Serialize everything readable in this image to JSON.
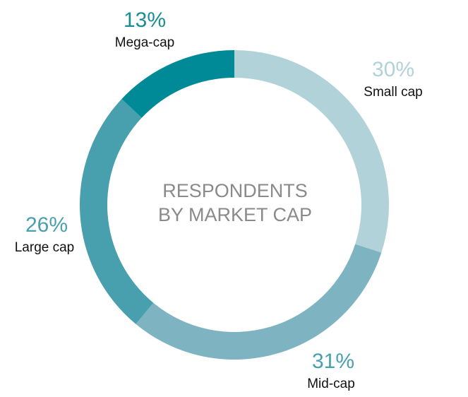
{
  "chart_data": {
    "type": "pie",
    "title_lines": [
      "RESPONDENTS",
      "BY MARKET CAP"
    ],
    "categories": [
      "Small cap",
      "Mid-cap",
      "Large cap",
      "Mega-cap"
    ],
    "values": [
      30,
      31,
      26,
      13
    ],
    "labels": [
      "30%",
      "31%",
      "26%",
      "13%"
    ],
    "colors": [
      "#b1d2d9",
      "#7eb4c1",
      "#48a0ae",
      "#008a98"
    ],
    "label_colors": [
      "#b1d2d9",
      "#48a0ae",
      "#48a0ae",
      "#1a8c97"
    ],
    "start": "12 o'clock",
    "direction": "clockwise",
    "style": "donut",
    "legend": "none"
  }
}
